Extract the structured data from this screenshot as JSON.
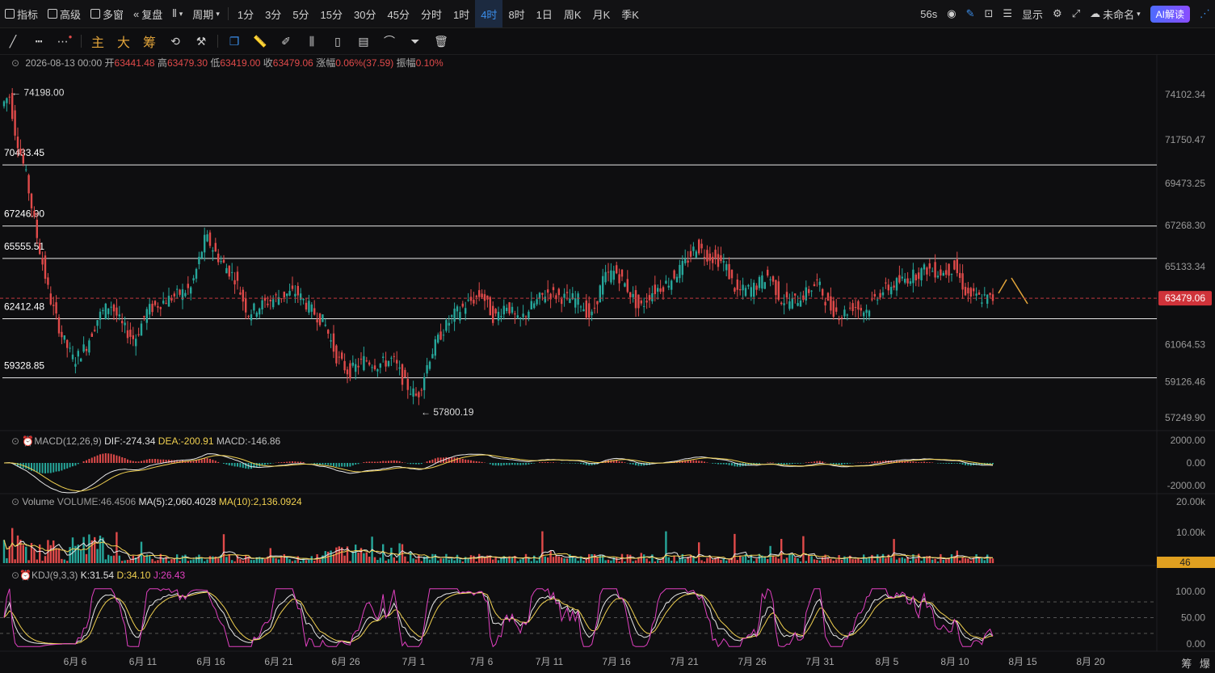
{
  "topbar": {
    "indicator": "指标",
    "advanced": "高级",
    "multiwin": "多窗",
    "replay": "复盘",
    "period": "周期",
    "periods": [
      "1分",
      "3分",
      "5分",
      "15分",
      "30分",
      "45分",
      "分时",
      "1时",
      "4时",
      "8时",
      "1日",
      "周K",
      "月K",
      "季K"
    ],
    "active_period": "4时",
    "countdown": "56s",
    "display": "显示",
    "layout_name": "未命名",
    "ai": "AI解读"
  },
  "toolbar": {
    "zhu": "主",
    "da": "大",
    "chou": "筹"
  },
  "ohlc": {
    "date": "2026-08-13 00:00",
    "open_label": "开",
    "open": "63441.48",
    "high_label": "高",
    "high": "63479.30",
    "low_label": "低",
    "low": "63419.00",
    "close_label": "收",
    "close": "63479.06",
    "change_label": "涨幅",
    "change": "0.06%(37.59)",
    "amp_label": "振幅",
    "amp": "0.10%"
  },
  "price_axis": [
    "74102.34",
    "71750.47",
    "69473.25",
    "67268.30",
    "65133.34",
    "61064.53",
    "59126.46",
    "57249.90"
  ],
  "current_price": "63479.06",
  "levels": [
    "70433.45",
    "67246.90",
    "65555.51",
    "62412.48",
    "59328.85"
  ],
  "high_marker": "74198.00",
  "low_marker": "57800.19",
  "macd": {
    "name": "MACD(12,26,9)",
    "dif": "DIF:-274.34",
    "dea": "DEA:-200.91",
    "macd": "MACD:-146.86",
    "axis": [
      "2000.00",
      "0.00",
      "-2000.00"
    ]
  },
  "volume": {
    "name": "Volume",
    "vol": "VOLUME:46.4506",
    "ma5": "MA(5):2,060.4028",
    "ma10": "MA(10):2,136.0924",
    "axis": [
      "20.00k",
      "10.00k"
    ],
    "current": "46"
  },
  "kdj": {
    "name": "KDJ(9,3,3)",
    "k": "K:31.54",
    "d": "D:34.10",
    "j": "J:26.43",
    "axis": [
      "100.00",
      "50.00",
      "0.00"
    ]
  },
  "date_axis": [
    "6月 6",
    "6月 11",
    "6月 16",
    "6月 21",
    "6月 26",
    "7月 1",
    "7月 6",
    "7月 11",
    "7月 16",
    "7月 21",
    "7月 26",
    "7月 31",
    "8月 5",
    "8月 10",
    "8月 15",
    "8月 20"
  ],
  "corner": [
    "筹",
    "爆"
  ],
  "colors": {
    "up": "#26a69a",
    "down": "#e04a4a",
    "accent": "#3b8eea",
    "gold": "#e2a43a"
  }
}
